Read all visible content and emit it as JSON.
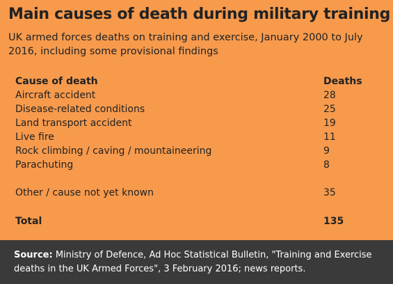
{
  "header": {
    "title": "Main causes of death during military training",
    "subtitle": "UK armed forces deaths on training and exercise, January 2000 to July 2016, including some provisional findings"
  },
  "table": {
    "columns": [
      "Cause of death",
      "Deaths"
    ],
    "rows": [
      [
        "Aircraft accident",
        28
      ],
      [
        "Disease-related conditions",
        25
      ],
      [
        "Land transport accident",
        19
      ],
      [
        "Live fire",
        11
      ],
      [
        "Rock climbing / caving / mountaineering",
        9
      ],
      [
        "Parachuting",
        8
      ]
    ],
    "other": [
      "Other / cause not yet known",
      35
    ],
    "total": [
      "Total",
      135
    ]
  },
  "footer": {
    "source_label": "Source:",
    "source_text": "Ministry of Defence, Ad Hoc Statistical Bulletin, \"Training and Exercise deaths in the UK Armed Forces\", 3 February 2016; news reports."
  }
}
